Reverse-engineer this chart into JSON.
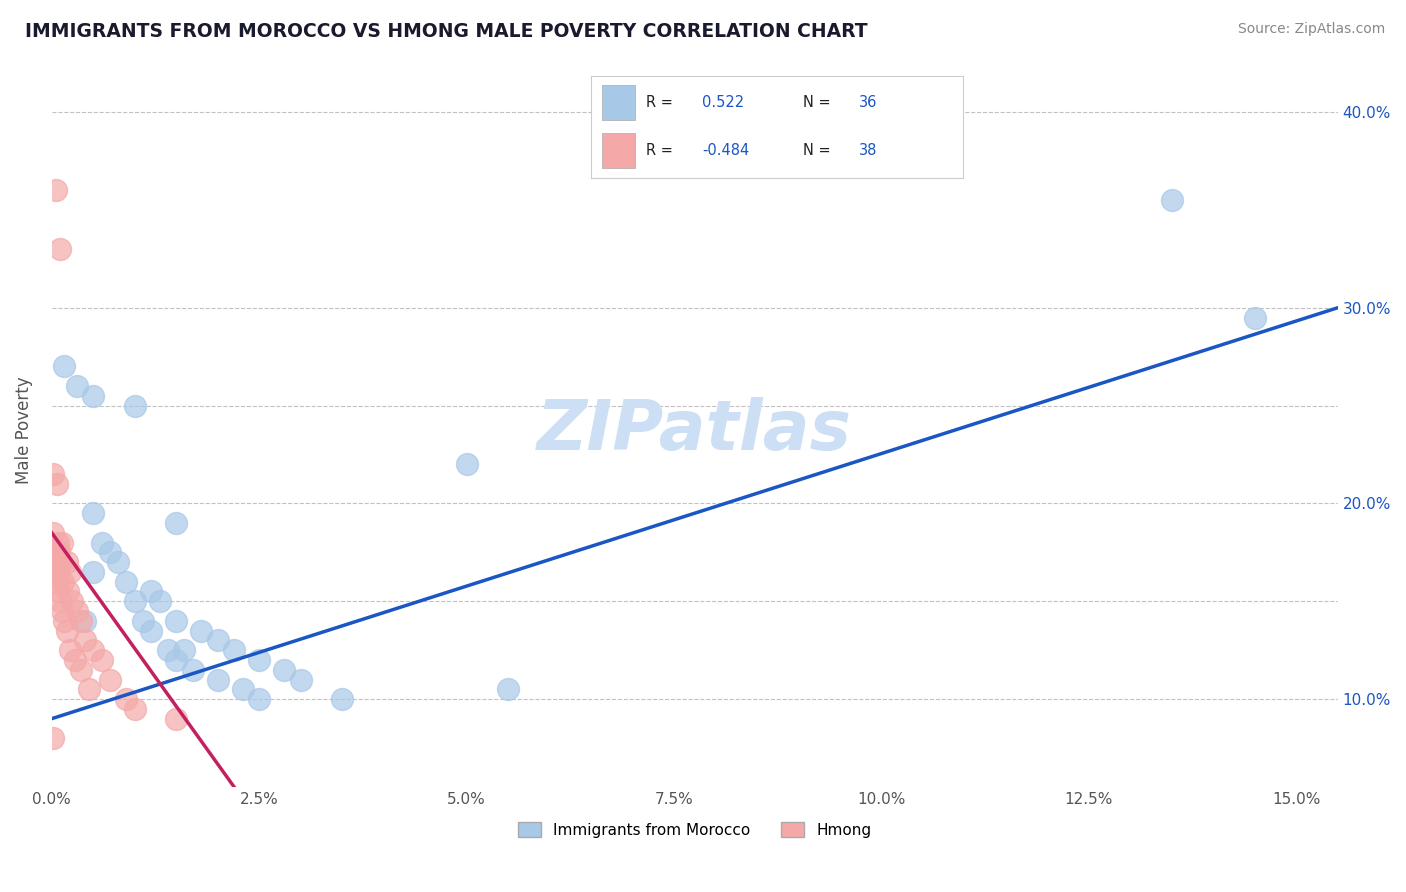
{
  "title": "IMMIGRANTS FROM MOROCCO VS HMONG MALE POVERTY CORRELATION CHART",
  "source": "Source: ZipAtlas.com",
  "ylabel_label": "Male Poverty",
  "watermark": "ZIPatlas",
  "legend_blue_label": "Immigrants from Morocco",
  "legend_pink_label": "Hmong",
  "blue_scatter": [
    [
      0.15,
      27.0
    ],
    [
      0.3,
      26.0
    ],
    [
      0.5,
      25.5
    ],
    [
      1.0,
      25.0
    ],
    [
      0.5,
      19.5
    ],
    [
      1.5,
      19.0
    ],
    [
      0.6,
      18.0
    ],
    [
      0.7,
      17.5
    ],
    [
      0.8,
      17.0
    ],
    [
      0.5,
      16.5
    ],
    [
      0.9,
      16.0
    ],
    [
      1.2,
      15.5
    ],
    [
      1.0,
      15.0
    ],
    [
      1.3,
      15.0
    ],
    [
      0.4,
      14.0
    ],
    [
      1.1,
      14.0
    ],
    [
      1.5,
      14.0
    ],
    [
      1.2,
      13.5
    ],
    [
      1.8,
      13.5
    ],
    [
      2.0,
      13.0
    ],
    [
      1.4,
      12.5
    ],
    [
      1.6,
      12.5
    ],
    [
      2.2,
      12.5
    ],
    [
      1.5,
      12.0
    ],
    [
      2.5,
      12.0
    ],
    [
      1.7,
      11.5
    ],
    [
      2.8,
      11.5
    ],
    [
      2.0,
      11.0
    ],
    [
      3.0,
      11.0
    ],
    [
      2.3,
      10.5
    ],
    [
      5.5,
      10.5
    ],
    [
      2.5,
      10.0
    ],
    [
      3.5,
      10.0
    ],
    [
      5.0,
      22.0
    ],
    [
      13.5,
      35.5
    ],
    [
      14.5,
      29.5
    ]
  ],
  "pink_scatter": [
    [
      0.02,
      21.5
    ],
    [
      0.06,
      21.0
    ],
    [
      0.02,
      18.5
    ],
    [
      0.07,
      18.0
    ],
    [
      0.12,
      18.0
    ],
    [
      0.04,
      17.5
    ],
    [
      0.09,
      17.5
    ],
    [
      0.05,
      17.0
    ],
    [
      0.1,
      17.0
    ],
    [
      0.18,
      17.0
    ],
    [
      0.04,
      16.5
    ],
    [
      0.08,
      16.5
    ],
    [
      0.22,
      16.5
    ],
    [
      0.06,
      16.0
    ],
    [
      0.14,
      16.0
    ],
    [
      0.08,
      15.5
    ],
    [
      0.2,
      15.5
    ],
    [
      0.1,
      15.0
    ],
    [
      0.25,
      15.0
    ],
    [
      0.12,
      14.5
    ],
    [
      0.3,
      14.5
    ],
    [
      0.15,
      14.0
    ],
    [
      0.35,
      14.0
    ],
    [
      0.18,
      13.5
    ],
    [
      0.4,
      13.0
    ],
    [
      0.22,
      12.5
    ],
    [
      0.5,
      12.5
    ],
    [
      0.28,
      12.0
    ],
    [
      0.6,
      12.0
    ],
    [
      0.35,
      11.5
    ],
    [
      0.7,
      11.0
    ],
    [
      0.45,
      10.5
    ],
    [
      0.9,
      10.0
    ],
    [
      1.0,
      9.5
    ],
    [
      1.5,
      9.0
    ],
    [
      0.02,
      8.0
    ],
    [
      0.05,
      36.0
    ],
    [
      0.1,
      33.0
    ]
  ],
  "blue_color": "#a8c8e8",
  "pink_color": "#f4a8a8",
  "blue_line_color": "#1a56c4",
  "pink_line_color": "#c42060",
  "bg_color": "#ffffff",
  "grid_color": "#bbbbbb",
  "title_color": "#1a1a2e",
  "watermark_color": "#ccdff5",
  "xlim": [
    0,
    15.5
  ],
  "ylim": [
    5.5,
    42
  ],
  "x_tick_vals": [
    0,
    2.5,
    5.0,
    7.5,
    10.0,
    12.5,
    15.0
  ],
  "y_tick_vals": [
    10.0,
    15.0,
    20.0,
    25.0,
    30.0,
    40.0
  ],
  "y_tick_labels_right": [
    "10.0%",
    "",
    "20.0%",
    "",
    "30.0%",
    "40.0%"
  ],
  "blue_line_manual": [
    0,
    15.5
  ],
  "blue_line_y": [
    9.0,
    30.0
  ],
  "pink_line_manual": [
    0,
    2.2
  ],
  "pink_line_y": [
    18.5,
    5.5
  ]
}
